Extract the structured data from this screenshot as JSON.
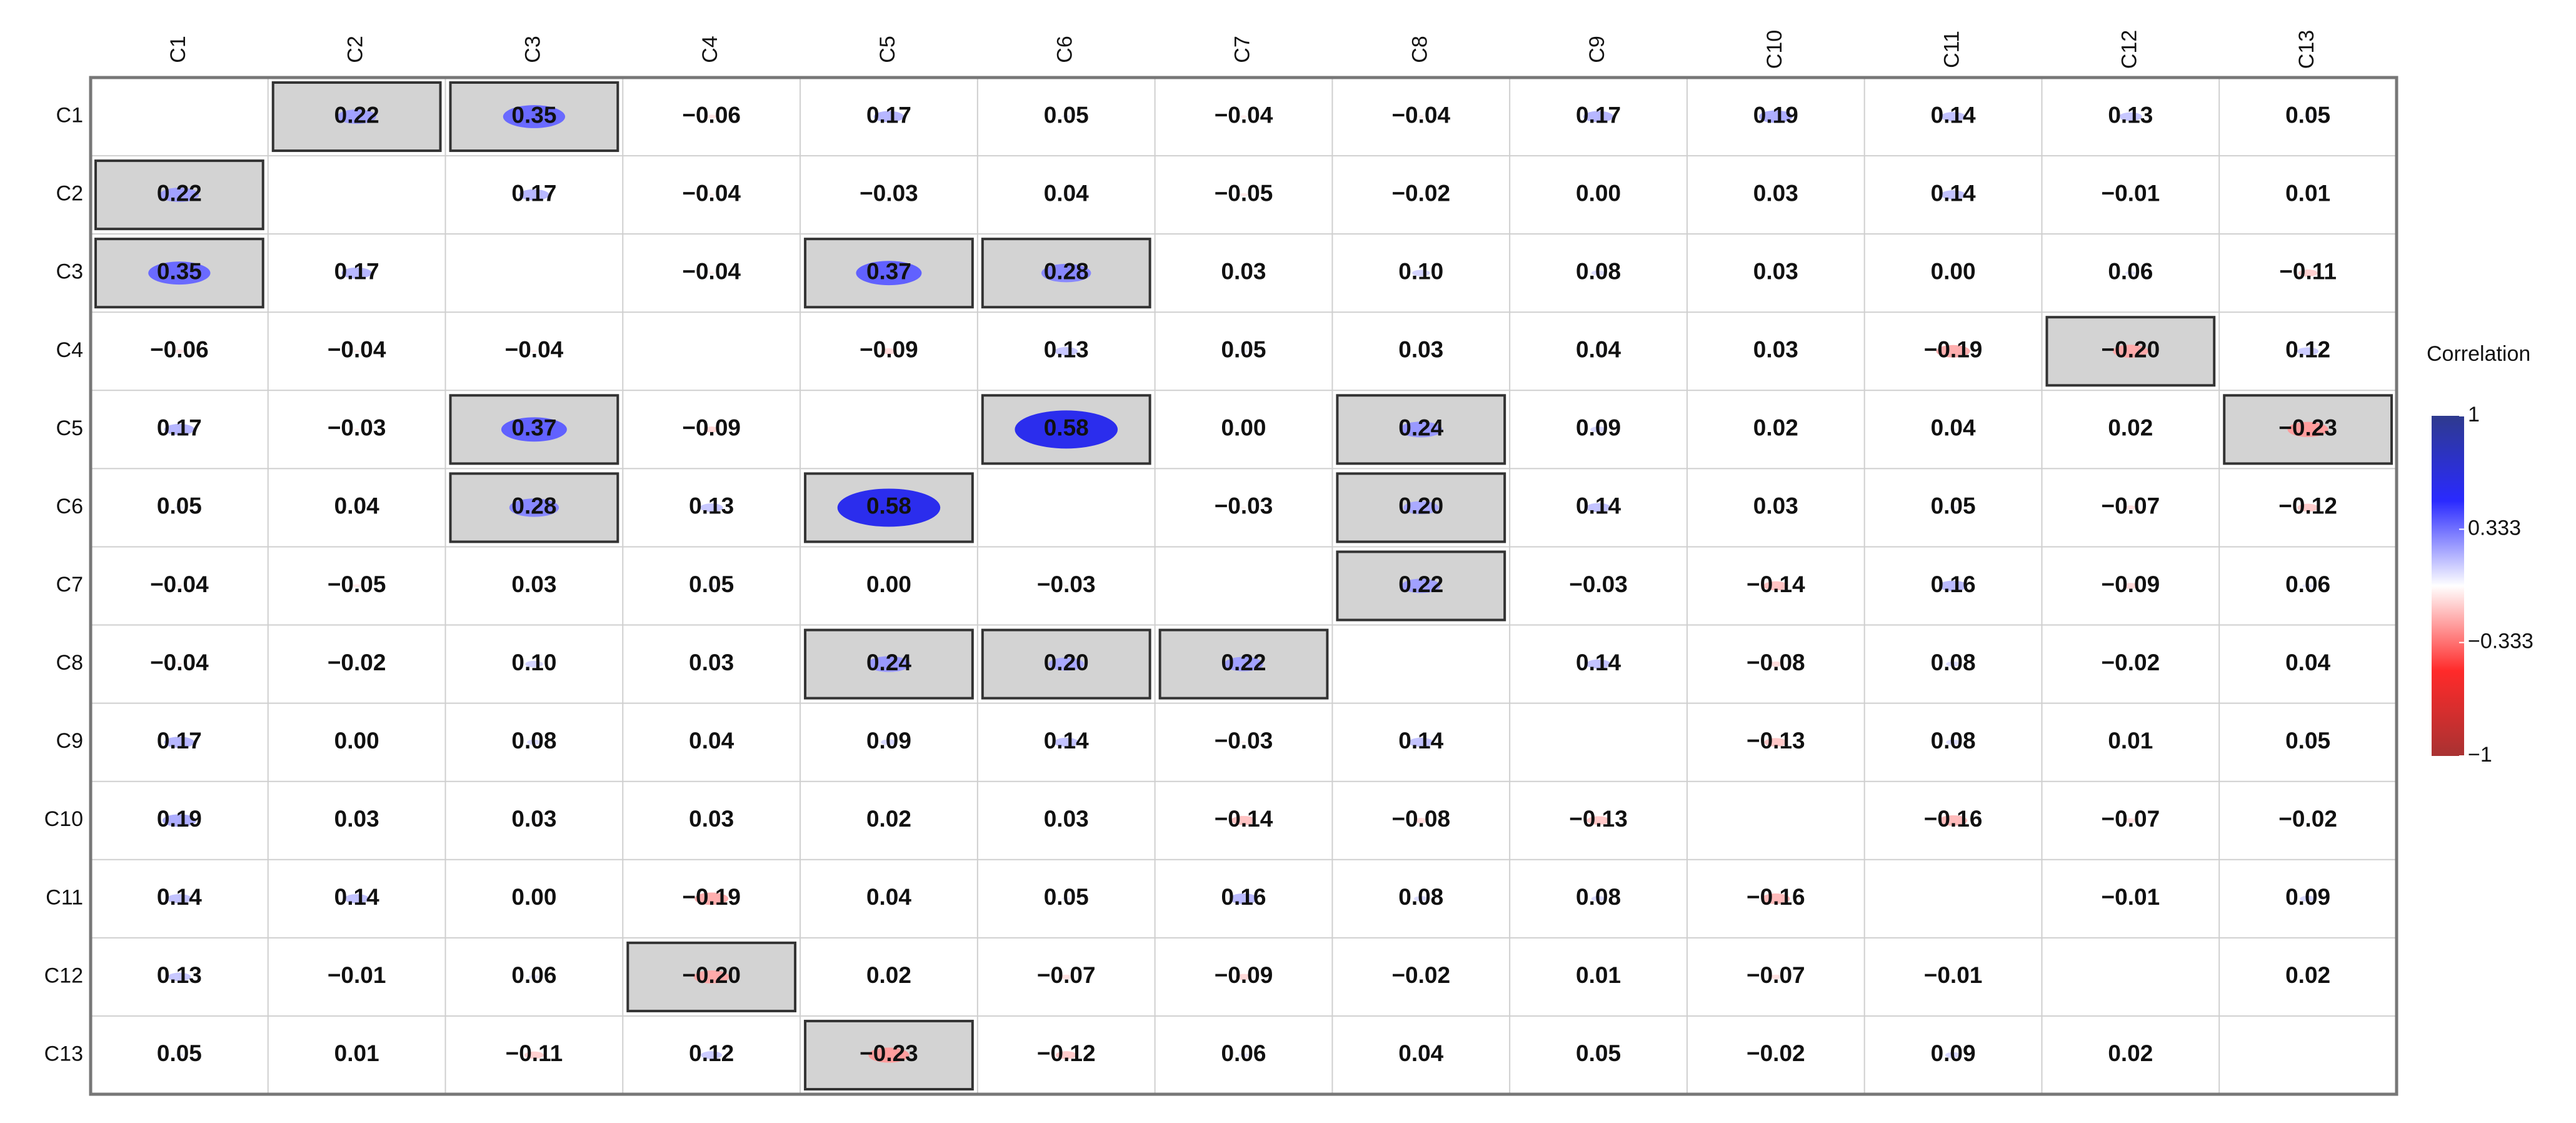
{
  "chart_data": {
    "type": "heatmap",
    "categories": [
      "C1",
      "C2",
      "C3",
      "C4",
      "C5",
      "C6",
      "C7",
      "C8",
      "C9",
      "C10",
      "C11",
      "C12",
      "C13"
    ],
    "values": [
      [
        null,
        0.22,
        0.35,
        -0.06,
        0.17,
        0.05,
        -0.04,
        -0.04,
        0.17,
        0.19,
        0.14,
        0.13,
        0.05
      ],
      [
        0.22,
        null,
        0.17,
        -0.04,
        -0.03,
        0.04,
        -0.05,
        -0.02,
        0.0,
        0.03,
        0.14,
        -0.01,
        0.01
      ],
      [
        0.35,
        0.17,
        null,
        -0.04,
        0.37,
        0.28,
        0.03,
        0.1,
        0.08,
        0.03,
        0.0,
        0.06,
        -0.11
      ],
      [
        -0.06,
        -0.04,
        -0.04,
        null,
        -0.09,
        0.13,
        0.05,
        0.03,
        0.04,
        0.03,
        -0.19,
        -0.2,
        0.12
      ],
      [
        0.17,
        -0.03,
        0.37,
        -0.09,
        null,
        0.58,
        0.0,
        0.24,
        0.09,
        0.02,
        0.04,
        0.02,
        -0.23
      ],
      [
        0.05,
        0.04,
        0.28,
        0.13,
        0.58,
        null,
        -0.03,
        0.2,
        0.14,
        0.03,
        0.05,
        -0.07,
        -0.12
      ],
      [
        -0.04,
        -0.05,
        0.03,
        0.05,
        0.0,
        -0.03,
        null,
        0.22,
        -0.03,
        -0.14,
        0.16,
        -0.09,
        0.06
      ],
      [
        -0.04,
        -0.02,
        0.1,
        0.03,
        0.24,
        0.2,
        0.22,
        null,
        0.14,
        -0.08,
        0.08,
        -0.02,
        0.04
      ],
      [
        0.17,
        0.0,
        0.08,
        0.04,
        0.09,
        0.14,
        -0.03,
        0.14,
        null,
        -0.13,
        0.08,
        0.01,
        0.05
      ],
      [
        0.19,
        0.03,
        0.03,
        0.03,
        0.02,
        0.03,
        -0.14,
        -0.08,
        -0.13,
        null,
        -0.16,
        -0.07,
        -0.02
      ],
      [
        0.14,
        0.14,
        0.0,
        -0.19,
        0.04,
        0.05,
        0.16,
        0.08,
        0.08,
        -0.16,
        null,
        -0.01,
        0.09
      ],
      [
        0.13,
        -0.01,
        0.06,
        -0.2,
        0.02,
        -0.07,
        -0.09,
        -0.02,
        0.01,
        -0.07,
        -0.01,
        null,
        0.02
      ],
      [
        0.05,
        0.01,
        -0.11,
        0.12,
        -0.23,
        -0.12,
        0.06,
        0.04,
        0.05,
        -0.02,
        0.09,
        0.02,
        null
      ]
    ],
    "value_labels": [
      [
        null,
        "0.22",
        "0.35",
        "−0.06",
        "0.17",
        "0.05",
        "−0.04",
        "−0.04",
        "0.17",
        "0.19",
        "0.14",
        "0.13",
        "0.05"
      ],
      [
        "0.22",
        null,
        "0.17",
        "−0.04",
        "−0.03",
        "0.04",
        "−0.05",
        "−0.02",
        "0.00",
        "0.03",
        "0.14",
        "−0.01",
        "0.01"
      ],
      [
        "0.35",
        "0.17",
        null,
        "−0.04",
        "0.37",
        "0.28",
        "0.03",
        "0.10",
        "0.08",
        "0.03",
        "0.00",
        "0.06",
        "−0.11"
      ],
      [
        "−0.06",
        "−0.04",
        "−0.04",
        null,
        "−0.09",
        "0.13",
        "0.05",
        "0.03",
        "0.04",
        "0.03",
        "−0.19",
        "−0.20",
        "0.12"
      ],
      [
        "0.17",
        "−0.03",
        "0.37",
        "−0.09",
        null,
        "0.58",
        "0.00",
        "0.24",
        "0.09",
        "0.02",
        "0.04",
        "0.02",
        "−0.23"
      ],
      [
        "0.05",
        "0.04",
        "0.28",
        "0.13",
        "0.58",
        null,
        "−0.03",
        "0.20",
        "0.14",
        "0.03",
        "0.05",
        "−0.07",
        "−0.12"
      ],
      [
        "−0.04",
        "−0.05",
        "0.03",
        "0.05",
        "0.00",
        "−0.03",
        null,
        "0.22",
        "−0.03",
        "−0.14",
        "0.16",
        "−0.09",
        "0.06"
      ],
      [
        "−0.04",
        "−0.02",
        "0.10",
        "0.03",
        "0.24",
        "0.20",
        "0.22",
        null,
        "0.14",
        "−0.08",
        "0.08",
        "−0.02",
        "0.04"
      ],
      [
        "0.17",
        "0.00",
        "0.08",
        "0.04",
        "0.09",
        "0.14",
        "−0.03",
        "0.14",
        null,
        "−0.13",
        "0.08",
        "0.01",
        "0.05"
      ],
      [
        "0.19",
        "0.03",
        "0.03",
        "0.03",
        "0.02",
        "0.03",
        "−0.14",
        "−0.08",
        "−0.13",
        null,
        "−0.16",
        "−0.07",
        "−0.02"
      ],
      [
        "0.14",
        "0.14",
        "0.00",
        "−0.19",
        "0.04",
        "0.05",
        "0.16",
        "0.08",
        "0.08",
        "−0.16",
        null,
        "−0.01",
        "0.09"
      ],
      [
        "0.13",
        "−0.01",
        "0.06",
        "−0.20",
        "0.02",
        "−0.07",
        "−0.09",
        "−0.02",
        "0.01",
        "−0.07",
        "−0.01",
        null,
        "0.02"
      ],
      [
        "0.05",
        "0.01",
        "−0.11",
        "0.12",
        "−0.23",
        "−0.12",
        "0.06",
        "0.04",
        "0.05",
        "−0.02",
        "0.09",
        "0.02",
        null
      ]
    ],
    "highlighted": [
      [
        false,
        true,
        true,
        false,
        false,
        false,
        false,
        false,
        false,
        false,
        false,
        false,
        false
      ],
      [
        true,
        false,
        false,
        false,
        false,
        false,
        false,
        false,
        false,
        false,
        false,
        false,
        false
      ],
      [
        true,
        false,
        false,
        false,
        true,
        true,
        false,
        false,
        false,
        false,
        false,
        false,
        false
      ],
      [
        false,
        false,
        false,
        false,
        false,
        false,
        false,
        false,
        false,
        false,
        false,
        true,
        false
      ],
      [
        false,
        false,
        true,
        false,
        false,
        true,
        false,
        true,
        false,
        false,
        false,
        false,
        true
      ],
      [
        false,
        false,
        true,
        false,
        true,
        false,
        false,
        true,
        false,
        false,
        false,
        false,
        false
      ],
      [
        false,
        false,
        false,
        false,
        false,
        false,
        false,
        true,
        false,
        false,
        false,
        false,
        false
      ],
      [
        false,
        false,
        false,
        false,
        true,
        true,
        true,
        false,
        false,
        false,
        false,
        false,
        false
      ],
      [
        false,
        false,
        false,
        false,
        false,
        false,
        false,
        false,
        false,
        false,
        false,
        false,
        false
      ],
      [
        false,
        false,
        false,
        false,
        false,
        false,
        false,
        false,
        false,
        false,
        false,
        false,
        false
      ],
      [
        false,
        false,
        false,
        false,
        false,
        false,
        false,
        false,
        false,
        false,
        false,
        false,
        false
      ],
      [
        false,
        false,
        false,
        true,
        false,
        false,
        false,
        false,
        false,
        false,
        false,
        false,
        false
      ],
      [
        false,
        false,
        false,
        false,
        true,
        false,
        false,
        false,
        false,
        false,
        false,
        false,
        false
      ]
    ],
    "colorbar": {
      "title": "Correlation",
      "lim": [
        -1,
        1
      ],
      "ticks": [
        1,
        0.333,
        {
          "value": -0.333,
          "label": "−0.333"
        },
        {
          "value": -1,
          "label": "−1"
        }
      ],
      "colors": [
        "#a83232",
        "#ff2a2a",
        "#ffffff",
        "#2a2aff",
        "#2e3a8e"
      ]
    }
  }
}
